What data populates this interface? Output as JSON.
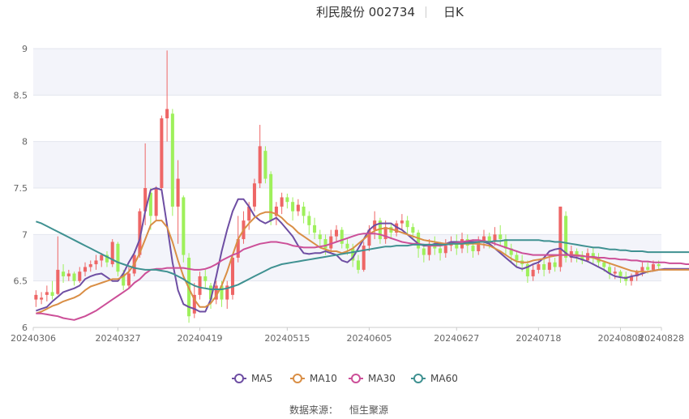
{
  "title": {
    "name": "利民股份 002734",
    "period": "日K"
  },
  "source": {
    "label": "数据来源：",
    "value": "恒生聚源"
  },
  "colors": {
    "up": "#ee6666",
    "down": "#9ef05b",
    "MA5": "#6e4ea3",
    "MA10": "#d98e45",
    "MA30": "#cc4f98",
    "MA60": "#3f9191",
    "band": "#f3f4fa",
    "grid": "#e3e6ee"
  },
  "chart_data": {
    "type": "candlestick",
    "y_ticks": [
      "6",
      "6.5",
      "7",
      "7.5",
      "8",
      "8.5",
      "9"
    ],
    "ylim": [
      6,
      9
    ],
    "x_ticks": [
      "20240306",
      "20240327",
      "20240419",
      "20240515",
      "20240605",
      "20240627",
      "20240718",
      "20240808",
      "20240828"
    ],
    "x_tick_index": [
      0,
      15,
      30,
      46,
      61,
      77,
      92,
      107,
      121
    ],
    "candles": [
      [
        6.3,
        6.35,
        6.22,
        6.4
      ],
      [
        6.3,
        6.32,
        6.25,
        6.38
      ],
      [
        6.35,
        6.38,
        6.28,
        6.45
      ],
      [
        6.38,
        6.34,
        6.3,
        6.5
      ],
      [
        6.36,
        6.62,
        6.35,
        6.98
      ],
      [
        6.6,
        6.55,
        6.48,
        6.68
      ],
      [
        6.55,
        6.58,
        6.5,
        6.62
      ],
      [
        6.58,
        6.5,
        6.45,
        6.6
      ],
      [
        6.5,
        6.6,
        6.48,
        6.65
      ],
      [
        6.6,
        6.65,
        6.55,
        6.7
      ],
      [
        6.65,
        6.68,
        6.6,
        6.72
      ],
      [
        6.68,
        6.72,
        6.62,
        6.78
      ],
      [
        6.72,
        6.78,
        6.65,
        6.8
      ],
      [
        6.78,
        6.7,
        6.65,
        6.82
      ],
      [
        6.68,
        6.92,
        6.65,
        6.95
      ],
      [
        6.9,
        6.6,
        6.55,
        6.92
      ],
      [
        6.58,
        6.45,
        6.4,
        6.62
      ],
      [
        6.45,
        6.58,
        6.42,
        6.65
      ],
      [
        6.58,
        6.78,
        6.55,
        6.82
      ],
      [
        6.78,
        7.25,
        6.75,
        7.28
      ],
      [
        7.25,
        7.5,
        7.1,
        7.98
      ],
      [
        7.45,
        7.2,
        7.05,
        7.5
      ],
      [
        7.2,
        7.5,
        7.15,
        7.52
      ],
      [
        7.5,
        8.25,
        7.45,
        8.28
      ],
      [
        8.25,
        8.35,
        8.0,
        8.98
      ],
      [
        8.3,
        7.3,
        7.2,
        8.35
      ],
      [
        7.3,
        7.6,
        6.9,
        7.8
      ],
      [
        7.4,
        6.78,
        6.7,
        7.42
      ],
      [
        6.75,
        6.12,
        6.05,
        6.8
      ],
      [
        6.15,
        6.35,
        6.1,
        6.48
      ],
      [
        6.35,
        6.55,
        6.3,
        6.6
      ],
      [
        6.55,
        6.5,
        6.42,
        6.62
      ],
      [
        6.45,
        6.3,
        6.2,
        6.48
      ],
      [
        6.3,
        6.45,
        6.25,
        6.5
      ],
      [
        6.45,
        6.3,
        6.22,
        6.5
      ],
      [
        6.3,
        6.45,
        6.2,
        6.5
      ],
      [
        6.35,
        6.75,
        6.3,
        6.78
      ],
      [
        6.75,
        6.95,
        6.7,
        7.2
      ],
      [
        6.95,
        7.15,
        6.9,
        7.25
      ],
      [
        7.15,
        7.3,
        7.05,
        7.35
      ],
      [
        7.3,
        7.55,
        7.25,
        7.6
      ],
      [
        7.55,
        7.95,
        7.5,
        8.18
      ],
      [
        7.9,
        7.6,
        7.55,
        7.95
      ],
      [
        7.65,
        7.15,
        7.1,
        7.68
      ],
      [
        7.2,
        7.3,
        7.1,
        7.35
      ],
      [
        7.3,
        7.4,
        7.22,
        7.45
      ],
      [
        7.4,
        7.35,
        7.28,
        7.44
      ],
      [
        7.35,
        7.25,
        7.15,
        7.4
      ],
      [
        7.25,
        7.32,
        7.2,
        7.38
      ],
      [
        7.3,
        7.2,
        7.12,
        7.35
      ],
      [
        7.2,
        7.1,
        7.0,
        7.25
      ],
      [
        7.1,
        7.02,
        6.95,
        7.18
      ],
      [
        7.0,
        6.95,
        6.88,
        7.05
      ],
      [
        6.95,
        6.85,
        6.78,
        7.0
      ],
      [
        6.85,
        6.98,
        6.8,
        7.05
      ],
      [
        6.98,
        7.05,
        6.92,
        7.1
      ],
      [
        7.05,
        6.9,
        6.85,
        7.08
      ],
      [
        6.9,
        6.85,
        6.78,
        6.95
      ],
      [
        6.85,
        6.72,
        6.65,
        6.9
      ],
      [
        6.72,
        6.62,
        6.58,
        6.78
      ],
      [
        6.62,
        6.88,
        6.6,
        6.92
      ],
      [
        6.88,
        7.05,
        6.82,
        7.1
      ],
      [
        7.05,
        7.15,
        6.95,
        7.25
      ],
      [
        7.15,
        6.95,
        6.9,
        7.18
      ],
      [
        6.95,
        7.08,
        6.9,
        7.15
      ],
      [
        7.08,
        7.02,
        6.95,
        7.12
      ],
      [
        7.02,
        7.12,
        6.98,
        7.15
      ],
      [
        7.12,
        7.15,
        7.05,
        7.22
      ],
      [
        7.15,
        7.08,
        7.0,
        7.2
      ],
      [
        7.08,
        7.02,
        6.95,
        7.12
      ],
      [
        7.02,
        6.85,
        6.75,
        7.05
      ],
      [
        6.85,
        6.78,
        6.7,
        6.9
      ],
      [
        6.78,
        6.9,
        6.72,
        6.95
      ],
      [
        6.9,
        6.85,
        6.78,
        6.98
      ],
      [
        6.85,
        6.8,
        6.72,
        6.92
      ],
      [
        6.8,
        6.88,
        6.75,
        6.95
      ],
      [
        6.88,
        6.92,
        6.82,
        6.98
      ],
      [
        6.92,
        6.85,
        6.78,
        7.0
      ],
      [
        6.85,
        6.95,
        6.8,
        7.02
      ],
      [
        6.95,
        6.88,
        6.8,
        7.0
      ],
      [
        6.88,
        6.82,
        6.75,
        6.95
      ],
      [
        6.82,
        6.92,
        6.78,
        6.98
      ],
      [
        6.92,
        6.98,
        6.85,
        7.05
      ],
      [
        6.98,
        6.92,
        6.85,
        7.02
      ],
      [
        6.92,
        7.0,
        6.88,
        7.08
      ],
      [
        7.0,
        6.95,
        6.88,
        7.1
      ],
      [
        6.95,
        6.85,
        6.78,
        7.0
      ],
      [
        6.85,
        6.78,
        6.7,
        6.9
      ],
      [
        6.78,
        6.72,
        6.65,
        6.82
      ],
      [
        6.72,
        6.68,
        6.6,
        6.78
      ],
      [
        6.68,
        6.55,
        6.48,
        6.72
      ],
      [
        6.55,
        6.62,
        6.5,
        6.68
      ],
      [
        6.62,
        6.68,
        6.58,
        6.72
      ],
      [
        6.68,
        6.62,
        6.55,
        6.75
      ],
      [
        6.62,
        6.7,
        6.58,
        6.78
      ],
      [
        6.7,
        6.65,
        6.6,
        6.75
      ],
      [
        6.65,
        7.3,
        6.6,
        7.3
      ],
      [
        7.2,
        6.75,
        6.7,
        7.25
      ],
      [
        6.75,
        6.82,
        6.7,
        6.88
      ],
      [
        6.82,
        6.78,
        6.7,
        6.85
      ],
      [
        6.78,
        6.72,
        6.68,
        6.82
      ],
      [
        6.72,
        6.8,
        6.7,
        6.85
      ],
      [
        6.8,
        6.75,
        6.68,
        6.85
      ],
      [
        6.75,
        6.7,
        6.65,
        6.8
      ],
      [
        6.7,
        6.65,
        6.6,
        6.72
      ],
      [
        6.65,
        6.58,
        6.52,
        6.7
      ],
      [
        6.58,
        6.6,
        6.52,
        6.65
      ],
      [
        6.6,
        6.55,
        6.48,
        6.62
      ],
      [
        6.55,
        6.5,
        6.45,
        6.6
      ],
      [
        6.5,
        6.55,
        6.45,
        6.58
      ],
      [
        6.55,
        6.6,
        6.5,
        6.62
      ],
      [
        6.6,
        6.65,
        6.55,
        6.7
      ],
      [
        6.65,
        6.62,
        6.58,
        6.7
      ],
      [
        6.62,
        6.68,
        6.6,
        6.72
      ],
      [
        6.68,
        6.66,
        6.62,
        6.72
      ]
    ],
    "ma_lines": [
      {
        "name": "MA5",
        "values": [
          6.18,
          6.2,
          6.22,
          6.28,
          6.33,
          6.38,
          6.4,
          6.42,
          6.45,
          6.52,
          6.55,
          6.57,
          6.58,
          6.54,
          6.5,
          6.5,
          6.58,
          6.7,
          6.8,
          6.95,
          7.25,
          7.48,
          7.5,
          7.48,
          7.1,
          6.7,
          6.4,
          6.25,
          6.22,
          6.2,
          6.17,
          6.17,
          6.3,
          6.55,
          6.82,
          7.05,
          7.25,
          7.38,
          7.38,
          7.3,
          7.2,
          7.15,
          7.12,
          7.15,
          7.18,
          7.12,
          7.05,
          6.98,
          6.88,
          6.8,
          6.79,
          6.8,
          6.8,
          6.82,
          6.8,
          6.78,
          6.72,
          6.7,
          6.75,
          6.85,
          6.95,
          7.05,
          7.1,
          7.12,
          7.12,
          7.12,
          7.08,
          7.05,
          7.0,
          6.95,
          6.9,
          6.88,
          6.88,
          6.9,
          6.9,
          6.9,
          6.92,
          6.92,
          6.92,
          6.92,
          6.92,
          6.92,
          6.92,
          6.9,
          6.85,
          6.8,
          6.75,
          6.7,
          6.65,
          6.63,
          6.65,
          6.68,
          6.7,
          6.75,
          6.82,
          6.84,
          6.85,
          6.8,
          6.76,
          6.75,
          6.73,
          6.71,
          6.68,
          6.65,
          6.62,
          6.58,
          6.55,
          6.54,
          6.53,
          6.55,
          6.56,
          6.58,
          6.6,
          6.61,
          6.62,
          6.63,
          6.63,
          6.63,
          6.63,
          6.63,
          6.63,
          6.64
        ]
      },
      {
        "name": "MA10",
        "values": [
          6.15,
          6.17,
          6.2,
          6.23,
          6.25,
          6.28,
          6.3,
          6.32,
          6.35,
          6.4,
          6.44,
          6.46,
          6.48,
          6.5,
          6.52,
          6.52,
          6.55,
          6.6,
          6.68,
          6.8,
          6.95,
          7.1,
          7.15,
          7.15,
          7.08,
          6.92,
          6.72,
          6.55,
          6.42,
          6.3,
          6.22,
          6.22,
          6.26,
          6.34,
          6.45,
          6.6,
          6.78,
          6.95,
          7.05,
          7.12,
          7.18,
          7.22,
          7.24,
          7.24,
          7.22,
          7.18,
          7.12,
          7.08,
          7.02,
          6.98,
          6.94,
          6.9,
          6.86,
          6.84,
          6.82,
          6.82,
          6.8,
          6.82,
          6.85,
          6.9,
          6.95,
          7.0,
          7.04,
          7.06,
          7.07,
          7.06,
          7.04,
          7.02,
          7.0,
          6.98,
          6.96,
          6.94,
          6.93,
          6.92,
          6.91,
          6.9,
          6.9,
          6.9,
          6.9,
          6.9,
          6.9,
          6.9,
          6.89,
          6.88,
          6.85,
          6.82,
          6.78,
          6.74,
          6.71,
          6.7,
          6.7,
          6.72,
          6.73,
          6.74,
          6.76,
          6.77,
          6.78,
          6.78,
          6.78,
          6.78,
          6.77,
          6.76,
          6.75,
          6.73,
          6.71,
          6.69,
          6.67,
          6.65,
          6.63,
          6.61,
          6.6,
          6.6,
          6.6,
          6.61,
          6.62,
          6.62,
          6.62,
          6.62,
          6.62,
          6.62,
          6.62,
          6.62
        ]
      },
      {
        "name": "MA30",
        "values": [
          6.15,
          6.15,
          6.14,
          6.13,
          6.12,
          6.1,
          6.09,
          6.08,
          6.1,
          6.12,
          6.15,
          6.18,
          6.22,
          6.26,
          6.3,
          6.34,
          6.38,
          6.42,
          6.48,
          6.52,
          6.58,
          6.62,
          6.63,
          6.63,
          6.64,
          6.64,
          6.64,
          6.64,
          6.63,
          6.62,
          6.62,
          6.63,
          6.65,
          6.68,
          6.72,
          6.75,
          6.78,
          6.8,
          6.84,
          6.86,
          6.88,
          6.9,
          6.91,
          6.92,
          6.92,
          6.91,
          6.9,
          6.88,
          6.87,
          6.86,
          6.86,
          6.86,
          6.87,
          6.88,
          6.9,
          6.92,
          6.94,
          6.96,
          6.98,
          7.0,
          7.01,
          7.01,
          7.01,
          7.0,
          6.98,
          6.96,
          6.94,
          6.92,
          6.91,
          6.9,
          6.9,
          6.89,
          6.88,
          6.88,
          6.88,
          6.89,
          6.9,
          6.91,
          6.92,
          6.93,
          6.94,
          6.94,
          6.93,
          6.92,
          6.9,
          6.88,
          6.86,
          6.84,
          6.82,
          6.8,
          6.79,
          6.78,
          6.78,
          6.78,
          6.78,
          6.78,
          6.78,
          6.78,
          6.78,
          6.77,
          6.77,
          6.76,
          6.76,
          6.75,
          6.75,
          6.74,
          6.74,
          6.73,
          6.73,
          6.72,
          6.72,
          6.71,
          6.71,
          6.7,
          6.7,
          6.7,
          6.69,
          6.69,
          6.69,
          6.68,
          6.68,
          6.68
        ]
      },
      {
        "name": "MA60",
        "values": [
          7.14,
          7.12,
          7.09,
          7.06,
          7.03,
          7.0,
          6.97,
          6.94,
          6.91,
          6.88,
          6.85,
          6.82,
          6.79,
          6.76,
          6.73,
          6.7,
          6.68,
          6.66,
          6.64,
          6.63,
          6.62,
          6.62,
          6.62,
          6.61,
          6.6,
          6.58,
          6.55,
          6.52,
          6.48,
          6.45,
          6.43,
          6.42,
          6.41,
          6.41,
          6.41,
          6.42,
          6.44,
          6.46,
          6.49,
          6.52,
          6.55,
          6.58,
          6.61,
          6.64,
          6.66,
          6.68,
          6.69,
          6.7,
          6.71,
          6.72,
          6.73,
          6.74,
          6.75,
          6.76,
          6.77,
          6.78,
          6.79,
          6.8,
          6.81,
          6.82,
          6.83,
          6.84,
          6.85,
          6.86,
          6.87,
          6.87,
          6.88,
          6.88,
          6.88,
          6.89,
          6.89,
          6.89,
          6.89,
          6.89,
          6.89,
          6.89,
          6.9,
          6.9,
          6.9,
          6.91,
          6.91,
          6.92,
          6.92,
          6.92,
          6.93,
          6.93,
          6.94,
          6.94,
          6.94,
          6.94,
          6.94,
          6.94,
          6.94,
          6.93,
          6.93,
          6.92,
          6.92,
          6.91,
          6.9,
          6.89,
          6.88,
          6.87,
          6.86,
          6.86,
          6.85,
          6.84,
          6.84,
          6.83,
          6.83,
          6.82,
          6.82,
          6.82,
          6.81,
          6.81,
          6.81,
          6.81,
          6.81,
          6.81,
          6.81,
          6.81,
          6.81,
          6.81
        ]
      }
    ],
    "legend": [
      "MA5",
      "MA10",
      "MA30",
      "MA60"
    ]
  }
}
